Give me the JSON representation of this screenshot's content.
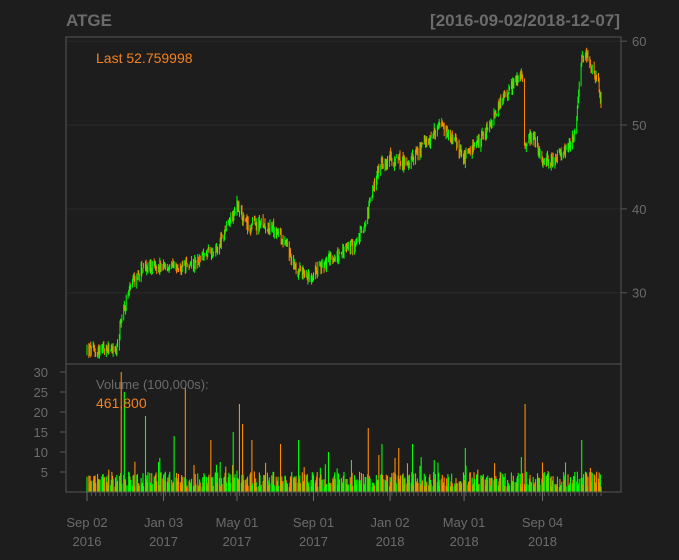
{
  "chart_data": {
    "type": "candlestick",
    "symbol": "ATGE",
    "date_range": "[2016-09-02/2018-12-07]",
    "last_label": "Last 52.759998",
    "volume_label": "Volume (100,000s):",
    "volume_last": "461,800",
    "price_axis": {
      "ticks": [
        30,
        40,
        50,
        60
      ],
      "ylim": [
        21.5,
        60.5
      ],
      "side": "right"
    },
    "volume_axis": {
      "ticks": [
        5,
        10,
        15,
        20,
        25,
        30
      ],
      "ylim": [
        0,
        32
      ],
      "side": "left",
      "units": "100,000s"
    },
    "x_axis": {
      "start": "2016-09-02",
      "end": "2018-12-07",
      "ticks": [
        {
          "date": "2016-09-02",
          "line1": "Sep 02",
          "line2": "2016"
        },
        {
          "date": "2017-01-03",
          "line1": "Jan 03",
          "line2": "2017"
        },
        {
          "date": "2017-05-01",
          "line1": "May 01",
          "line2": "2017"
        },
        {
          "date": "2017-09-01",
          "line1": "Sep 01",
          "line2": "2017"
        },
        {
          "date": "2018-01-02",
          "line1": "Jan 02",
          "line2": "2018"
        },
        {
          "date": "2018-05-01",
          "line1": "May 01",
          "line2": "2018"
        },
        {
          "date": "2018-09-04",
          "line1": "Sep 04",
          "line2": "2018"
        }
      ]
    },
    "price_path": [
      [
        "2016-09-02",
        23.2
      ],
      [
        "2016-09-20",
        23.0
      ],
      [
        "2016-10-10",
        23.3
      ],
      [
        "2016-10-20",
        23.1
      ],
      [
        "2016-10-27",
        27.0
      ],
      [
        "2016-11-10",
        30.5
      ],
      [
        "2016-12-01",
        33.0
      ],
      [
        "2017-01-03",
        33.0
      ],
      [
        "2017-02-01",
        32.8
      ],
      [
        "2017-03-01",
        34.0
      ],
      [
        "2017-04-01",
        35.5
      ],
      [
        "2017-05-01",
        40.5
      ],
      [
        "2017-05-15",
        38.0
      ],
      [
        "2017-06-15",
        38.2
      ],
      [
        "2017-07-15",
        36.5
      ],
      [
        "2017-08-01",
        33.0
      ],
      [
        "2017-08-25",
        32.0
      ],
      [
        "2017-09-20",
        33.5
      ],
      [
        "2017-10-20",
        35.0
      ],
      [
        "2017-11-10",
        36.0
      ],
      [
        "2017-11-25",
        39.0
      ],
      [
        "2017-12-15",
        45.0
      ],
      [
        "2018-01-02",
        46.0
      ],
      [
        "2018-02-01",
        45.5
      ],
      [
        "2018-03-01",
        48.0
      ],
      [
        "2018-03-25",
        49.8
      ],
      [
        "2018-04-15",
        48.0
      ],
      [
        "2018-05-01",
        46.0
      ],
      [
        "2018-05-20",
        47.5
      ],
      [
        "2018-06-10",
        49.5
      ],
      [
        "2018-07-01",
        53.0
      ],
      [
        "2018-07-25",
        55.5
      ],
      [
        "2018-08-03",
        56.0
      ],
      [
        "2018-08-06",
        48.0
      ],
      [
        "2018-08-20",
        48.5
      ],
      [
        "2018-09-04",
        45.5
      ],
      [
        "2018-09-25",
        46.0
      ],
      [
        "2018-10-15",
        47.0
      ],
      [
        "2018-10-28",
        50.0
      ],
      [
        "2018-11-05",
        57.5
      ],
      [
        "2018-11-15",
        58.5
      ],
      [
        "2018-11-25",
        56.0
      ],
      [
        "2018-12-03",
        55.0
      ],
      [
        "2018-12-07",
        52.76
      ]
    ],
    "volume_typical": 3,
    "volume_spikes": [
      [
        "2016-10-27",
        30
      ],
      [
        "2016-11-01",
        25
      ],
      [
        "2016-12-05",
        19
      ],
      [
        "2017-01-20",
        14
      ],
      [
        "2017-02-07",
        26
      ],
      [
        "2017-03-20",
        13
      ],
      [
        "2017-04-25",
        15
      ],
      [
        "2017-05-05",
        22
      ],
      [
        "2017-05-10",
        17
      ],
      [
        "2017-05-25",
        13
      ],
      [
        "2017-07-10",
        12
      ],
      [
        "2017-08-08",
        13
      ],
      [
        "2017-09-25",
        10
      ],
      [
        "2017-11-01",
        8
      ],
      [
        "2017-11-28",
        16
      ],
      [
        "2017-12-20",
        12
      ],
      [
        "2018-01-16",
        11
      ],
      [
        "2018-02-07",
        12
      ],
      [
        "2018-05-03",
        11
      ],
      [
        "2018-08-07",
        22
      ],
      [
        "2018-11-06",
        13
      ],
      [
        "2018-11-20",
        6
      ]
    ],
    "colors": {
      "up": "#00ff00",
      "down": "#ff8c00",
      "frame": "#555555",
      "grid": "#2a2a2a",
      "accent": "#f5821f"
    },
    "grid": true
  }
}
